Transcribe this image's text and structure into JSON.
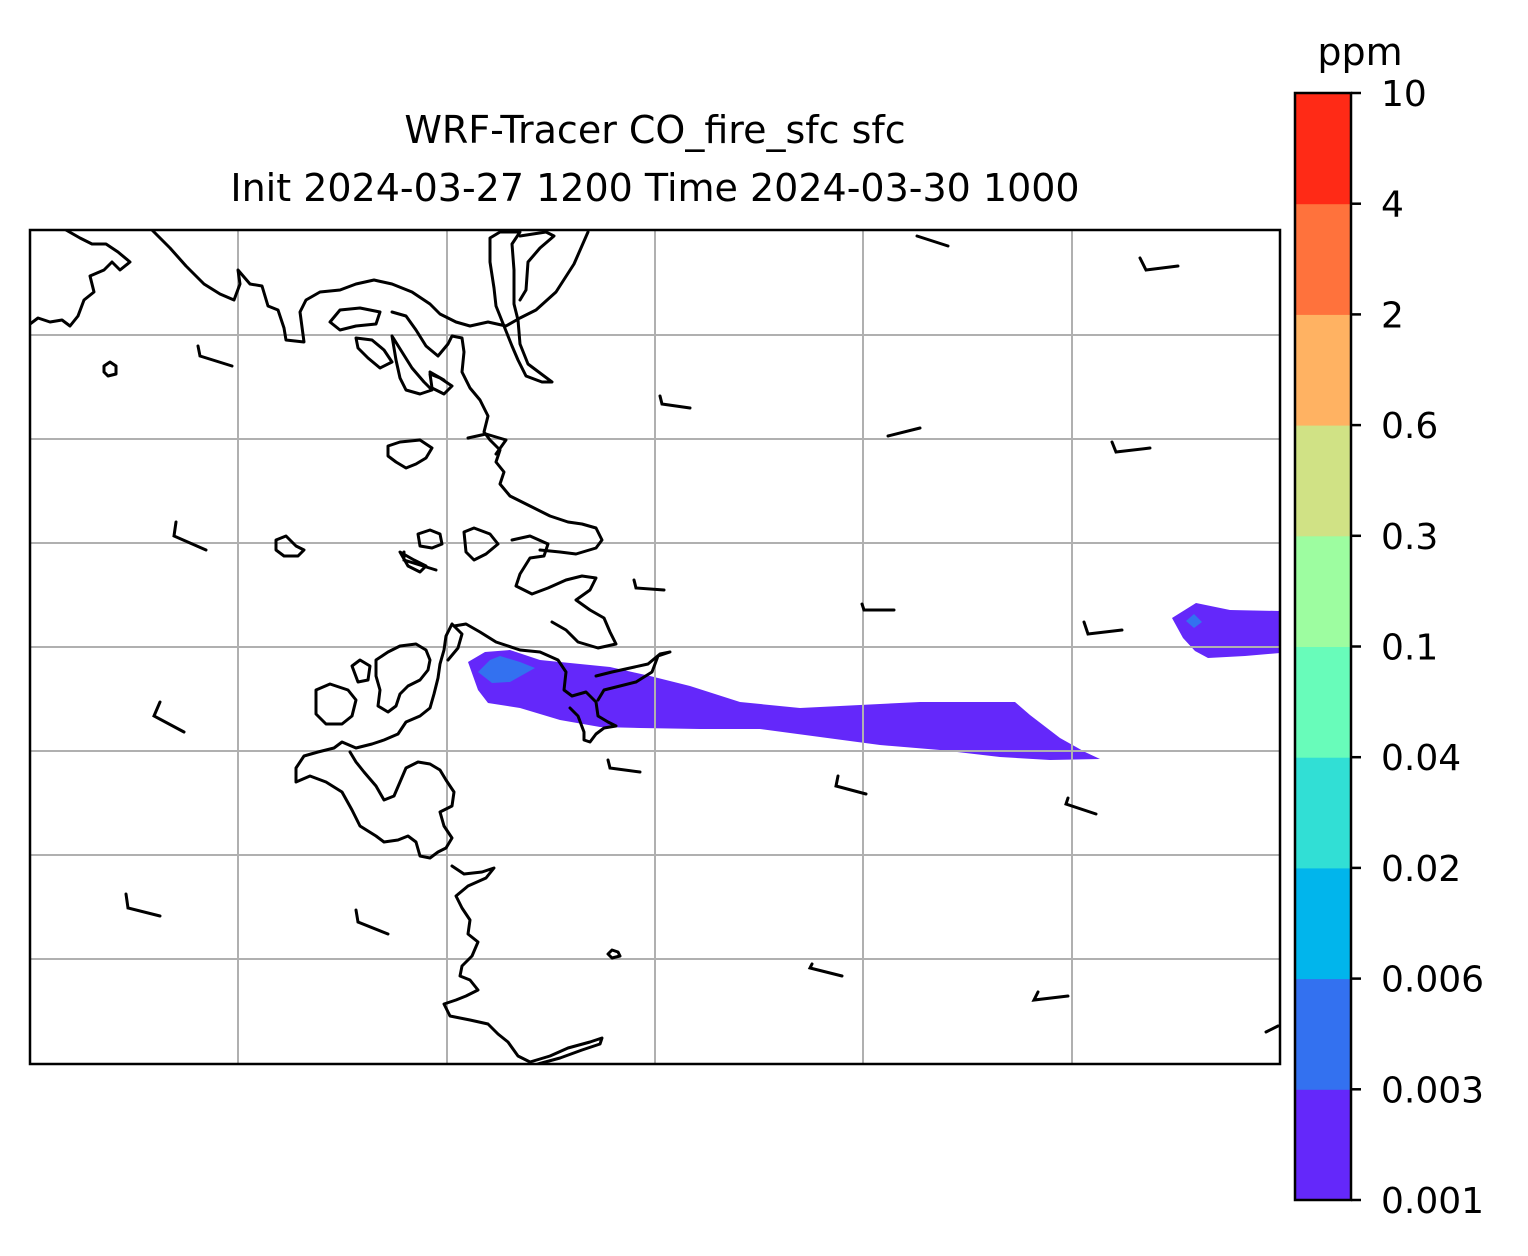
{
  "title": {
    "line1": "WRF-Tracer CO_fire_sfc sfc",
    "line2": "Init 2024-03-27 1200 Time 2024-03-30 1000"
  },
  "colorbar": {
    "unit": "ppm",
    "levels": [
      "0.001",
      "0.003",
      "0.006",
      "0.02",
      "0.04",
      "0.1",
      "0.3",
      "0.6",
      "2",
      "4",
      "10"
    ],
    "colors": [
      "#6428fa",
      "#3371f0",
      "#01b5ec",
      "#31dfd5",
      "#68fcba",
      "#9dfda0",
      "#d0e285",
      "#ffb262",
      "#ff723c",
      "#ff2a16"
    ]
  },
  "map": {
    "gridlines": true,
    "plume_color": "#6428fa",
    "core_color": "#3371f0",
    "coast_color": "#000000",
    "barb_color": "#000000"
  }
}
